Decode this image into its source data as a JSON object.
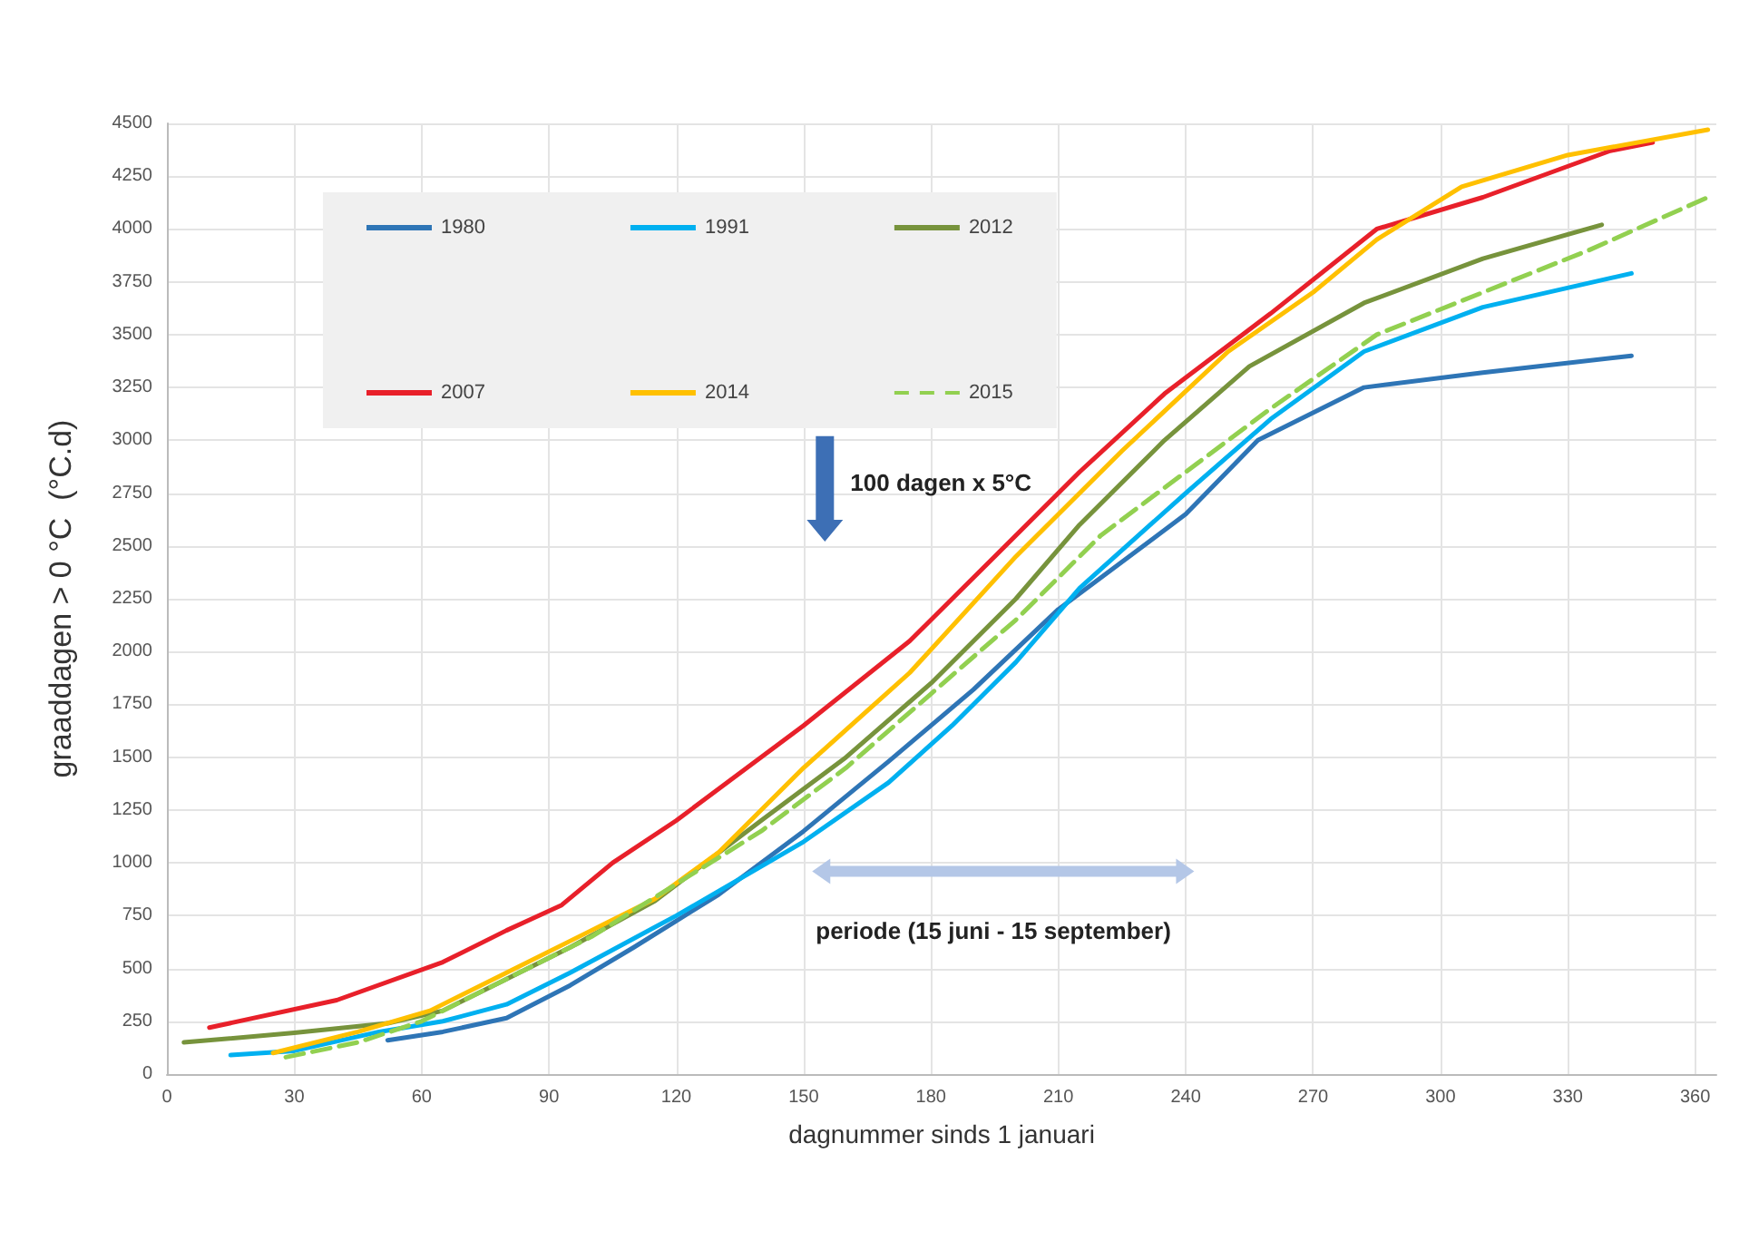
{
  "chart_data": {
    "type": "line",
    "xlabel": "dagnummer sinds 1 januari",
    "ylabel": "graaddagen > 0 °C  (°C.d)",
    "xlim": [
      0,
      365
    ],
    "xticks": [
      0,
      30,
      60,
      90,
      120,
      150,
      180,
      210,
      240,
      270,
      300,
      330,
      360
    ],
    "ylim": [
      0,
      4500
    ],
    "yticks": [
      0,
      250,
      500,
      750,
      1000,
      1250,
      1500,
      1750,
      2000,
      2250,
      2500,
      2750,
      3000,
      3250,
      3500,
      3750,
      4000,
      4250,
      4500
    ],
    "grid": true,
    "legend": "top left",
    "marker": "none",
    "annotations": [
      "100 dagen x 5°C",
      "periode (15 juni - 15 september)"
    ],
    "series": [
      {
        "name": "1980",
        "color": "#2e75b6",
        "line_style": "solid",
        "x": [
          52,
          65,
          80,
          95,
          110,
          130,
          150,
          170,
          190,
          210,
          240,
          257,
          282,
          310,
          345
        ],
        "values": [
          160,
          200,
          265,
          420,
          600,
          850,
          1150,
          1480,
          1820,
          2200,
          2650,
          3000,
          3250,
          3320,
          3400
        ]
      },
      {
        "name": "1991",
        "color": "#00b0f0",
        "line_style": "solid",
        "x": [
          15,
          30,
          50,
          65,
          80,
          95,
          120,
          150,
          170,
          185,
          200,
          215,
          240,
          260,
          282,
          310,
          345
        ],
        "values": [
          90,
          110,
          200,
          250,
          330,
          480,
          750,
          1100,
          1380,
          1650,
          1950,
          2300,
          2750,
          3100,
          3420,
          3630,
          3790
        ]
      },
      {
        "name": "2012",
        "color": "#77933c",
        "line_style": "solid",
        "x": [
          4,
          30,
          52,
          65,
          80,
          95,
          115,
          140,
          160,
          180,
          200,
          215,
          235,
          255,
          282,
          310,
          338
        ],
        "values": [
          150,
          195,
          240,
          300,
          450,
          600,
          820,
          1200,
          1500,
          1850,
          2250,
          2600,
          3000,
          3350,
          3650,
          3860,
          4020
        ]
      },
      {
        "name": "2007",
        "color": "#e8202a",
        "line_style": "solid",
        "x": [
          10,
          40,
          65,
          80,
          93,
          105,
          120,
          150,
          175,
          195,
          215,
          235,
          260,
          285,
          310,
          340,
          350
        ],
        "values": [
          220,
          350,
          530,
          680,
          800,
          1000,
          1200,
          1650,
          2050,
          2450,
          2850,
          3220,
          3600,
          4000,
          4150,
          4370,
          4410
        ]
      },
      {
        "name": "2014",
        "color": "#ffc000",
        "line_style": "solid",
        "x": [
          25,
          45,
          62,
          80,
          100,
          115,
          130,
          150,
          175,
          200,
          225,
          250,
          270,
          285,
          305,
          330,
          363
        ],
        "values": [
          100,
          200,
          300,
          480,
          680,
          830,
          1050,
          1450,
          1900,
          2450,
          2950,
          3420,
          3700,
          3950,
          4200,
          4350,
          4470
        ]
      },
      {
        "name": "2015",
        "color": "#92d050",
        "line_style": "dashed",
        "x": [
          28,
          45,
          60,
          80,
          100,
          120,
          140,
          160,
          180,
          200,
          220,
          240,
          260,
          285,
          310,
          335,
          363
        ],
        "values": [
          80,
          150,
          250,
          450,
          650,
          900,
          1150,
          1450,
          1800,
          2150,
          2550,
          2850,
          3150,
          3500,
          3700,
          3900,
          4150
        ]
      }
    ]
  }
}
